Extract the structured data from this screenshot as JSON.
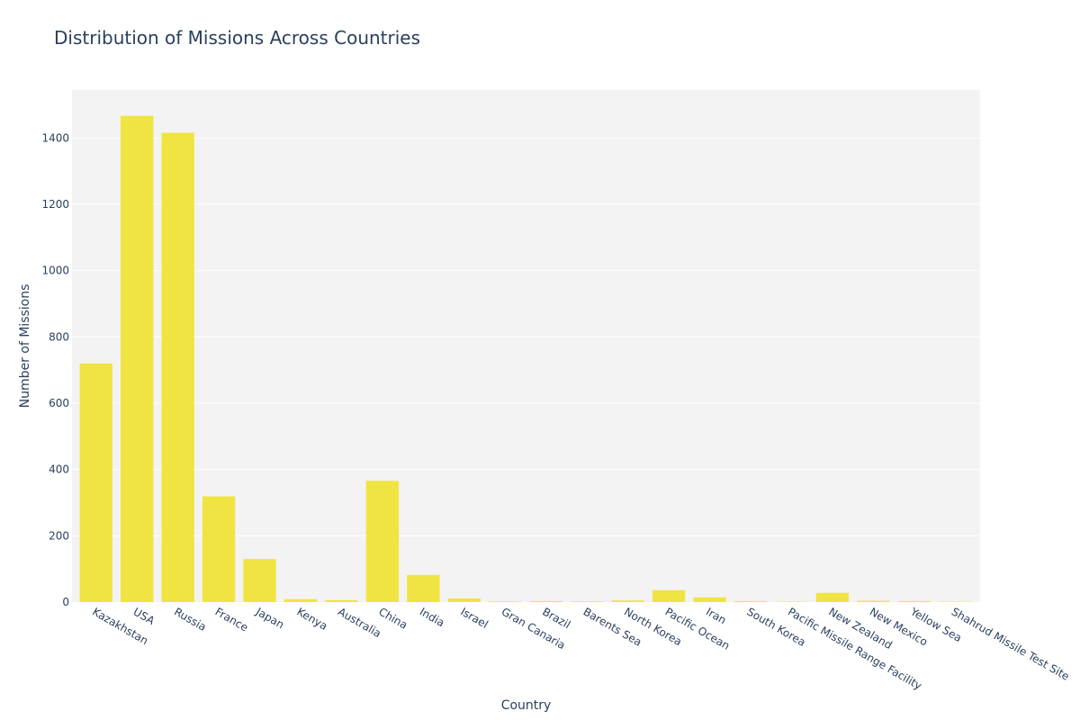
{
  "chart_data": {
    "type": "bar",
    "title": "Distribution of Missions Across Countries",
    "xlabel": "Country",
    "ylabel": "Number of Missions",
    "ylim": [
      0,
      1545
    ],
    "yticks": [
      0,
      200,
      400,
      600,
      800,
      1000,
      1200,
      1400
    ],
    "grid": true,
    "legend": false,
    "bar_color": "#f0e442",
    "plot_bg": "#f3f3f3",
    "categories": [
      "Kazakhstan",
      "USA",
      "Russia",
      "France",
      "Japan",
      "Kenya",
      "Australia",
      "China",
      "India",
      "Israel",
      "Gran Canaria",
      "Brazil",
      "Barents Sea",
      "North Korea",
      "Pacific Ocean",
      "Iran",
      "South Korea",
      "Pacific Missile Range Facility",
      "New Zealand",
      "New Mexico",
      "Yellow Sea",
      "Shahrud Missile Test Site"
    ],
    "values": [
      720,
      1467,
      1416,
      319,
      130,
      9,
      6,
      366,
      82,
      11,
      2,
      3,
      2,
      5,
      36,
      14,
      3,
      1,
      28,
      4,
      3,
      1
    ]
  }
}
